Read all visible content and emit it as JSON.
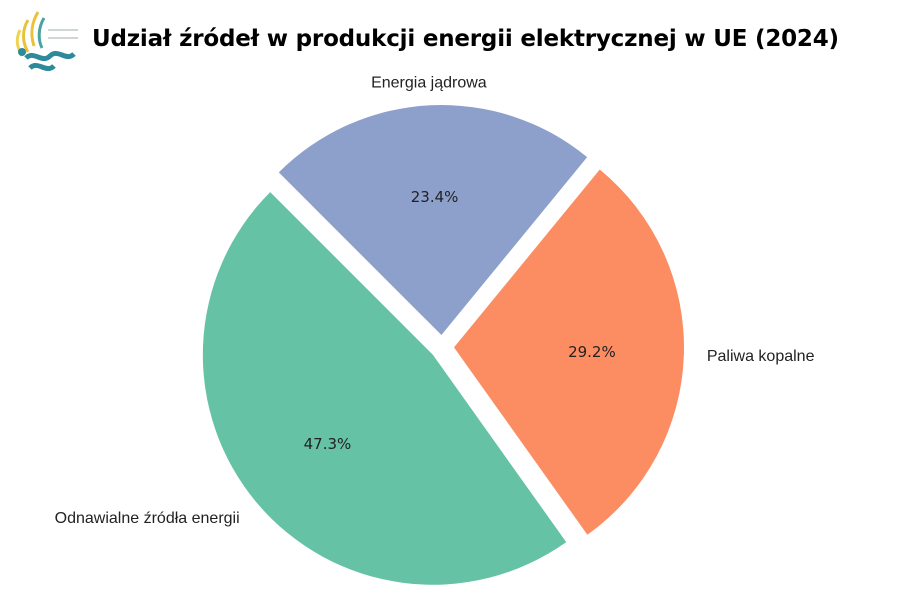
{
  "title": "Udział źródeł w produkcji energii elektrycznej w UE (2024)",
  "logo": {
    "icon": "leaf-wave-logo"
  },
  "chart_data": {
    "type": "pie",
    "title": "Udział źródeł w produkcji energii elektrycznej w UE (2024)",
    "slices": [
      {
        "label": "Odnawialne źródła energii",
        "value": 47.3,
        "pct_label": "47.3%",
        "color": "#66c2a5"
      },
      {
        "label": "Paliwa kopalne",
        "value": 29.2,
        "pct_label": "29.2%",
        "color": "#fc8d62"
      },
      {
        "label": "Energia jądrowa",
        "value": 23.4,
        "pct_label": "23.4%",
        "color": "#8da0cb"
      }
    ],
    "start_angle_deg": 135,
    "direction": "counterclockwise",
    "exploded": true,
    "legend": "none"
  }
}
